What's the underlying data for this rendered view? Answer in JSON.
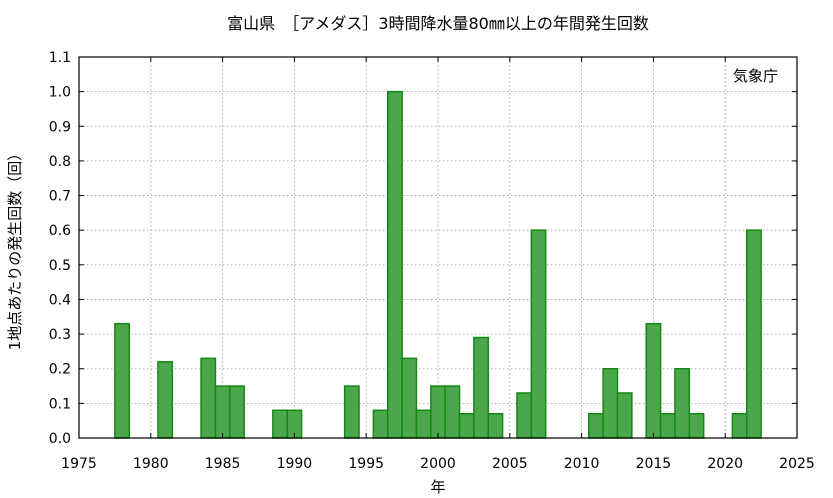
{
  "chart_data": {
    "type": "bar",
    "title": "富山県　［アメダス］3時間降水量80㎜以上の年間発生回数",
    "xlabel": "年",
    "ylabel": "1地点あたりの発生回数（回）",
    "source_label": "気象庁",
    "xlim": [
      1975,
      2025
    ],
    "ylim": [
      0,
      1.1
    ],
    "x_ticks": [
      1975,
      1980,
      1985,
      1990,
      1995,
      2000,
      2005,
      2010,
      2015,
      2020,
      2025
    ],
    "y_ticks": [
      0.0,
      0.1,
      0.2,
      0.3,
      0.4,
      0.5,
      0.6,
      0.7,
      0.8,
      0.9,
      1.0,
      1.1
    ],
    "grid": true,
    "bar_fill": "#4ca64c",
    "bar_stroke": "#138a13",
    "x": [
      1976,
      1977,
      1978,
      1979,
      1980,
      1981,
      1982,
      1983,
      1984,
      1985,
      1986,
      1987,
      1988,
      1989,
      1990,
      1991,
      1992,
      1993,
      1994,
      1995,
      1996,
      1997,
      1998,
      1999,
      2000,
      2001,
      2002,
      2003,
      2004,
      2005,
      2006,
      2007,
      2008,
      2009,
      2010,
      2011,
      2012,
      2013,
      2014,
      2015,
      2016,
      2017,
      2018,
      2019,
      2020,
      2021,
      2022,
      2023
    ],
    "values": [
      0,
      0,
      0.33,
      0,
      0,
      0.22,
      0,
      0,
      0.23,
      0.15,
      0.15,
      0,
      0,
      0.08,
      0.08,
      0,
      0,
      0,
      0.15,
      0,
      0.08,
      1.0,
      0.23,
      0.08,
      0.15,
      0.15,
      0.07,
      0.29,
      0.07,
      0,
      0.13,
      0.6,
      0,
      0,
      0,
      0.07,
      0.2,
      0.13,
      0,
      0.33,
      0.07,
      0.2,
      0.07,
      0,
      0,
      0.07,
      0.6,
      0
    ]
  }
}
